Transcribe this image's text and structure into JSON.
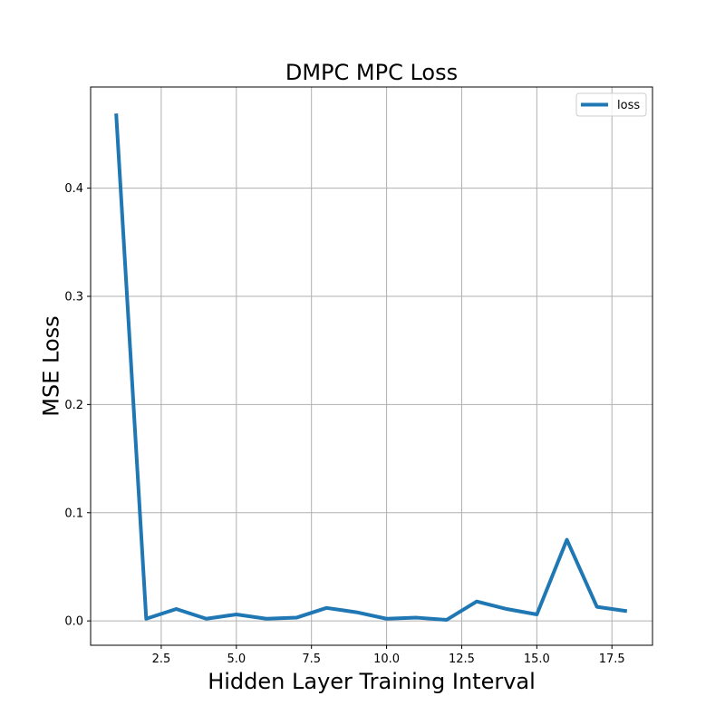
{
  "chart_data": {
    "type": "line",
    "title": "DMPC MPC Loss",
    "xlabel": "Hidden Layer Training Interval",
    "ylabel": "MSE Loss",
    "xlim": [
      0.15,
      18.85
    ],
    "ylim": [
      -0.0225,
      0.4935
    ],
    "xticks": [
      2.5,
      5.0,
      7.5,
      10.0,
      12.5,
      15.0,
      17.5
    ],
    "xtick_labels": [
      "2.5",
      "5.0",
      "7.5",
      "10.0",
      "12.5",
      "15.0",
      "17.5"
    ],
    "yticks": [
      0.0,
      0.1,
      0.2,
      0.3,
      0.4
    ],
    "ytick_labels": [
      "0.0",
      "0.1",
      "0.2",
      "0.3",
      "0.4"
    ],
    "grid": true,
    "legend_position": "top-right",
    "series": [
      {
        "name": "loss",
        "color": "#1f77b4",
        "x": [
          1,
          2,
          3,
          4,
          5,
          6,
          7,
          8,
          9,
          10,
          11,
          12,
          13,
          14,
          15,
          16,
          17,
          18
        ],
        "y": [
          0.469,
          0.002,
          0.011,
          0.002,
          0.006,
          0.002,
          0.003,
          0.012,
          0.008,
          0.002,
          0.003,
          0.001,
          0.018,
          0.011,
          0.006,
          0.075,
          0.013,
          0.009
        ]
      }
    ]
  }
}
